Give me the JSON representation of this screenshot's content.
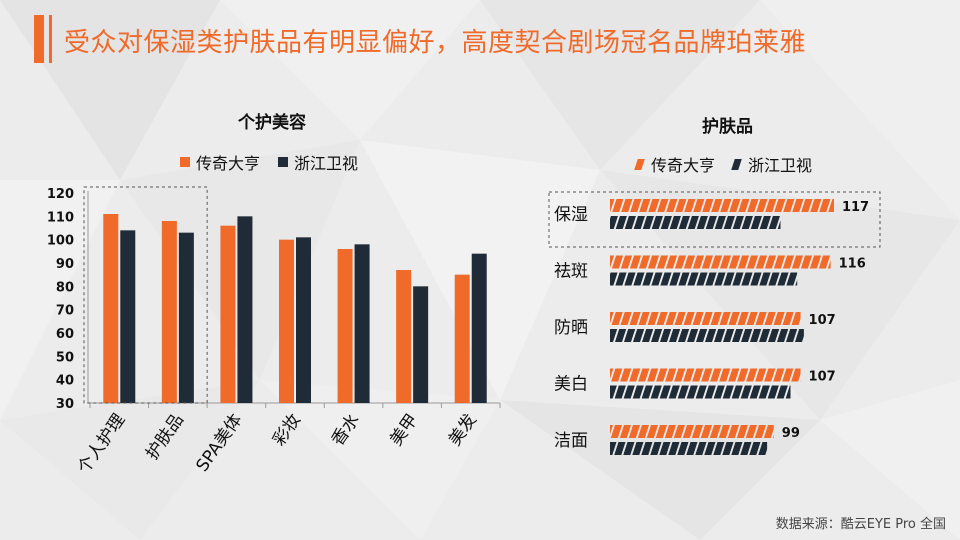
{
  "page": {
    "title": "受众对保湿类护肤品有明显偏好，高度契合剧场冠名品牌珀莱雅",
    "source": "数据来源：酷云EYE Pro 全国",
    "colors": {
      "accent": "#f06a2a",
      "dark": "#1f2b37"
    }
  },
  "chart_data": [
    {
      "type": "bar",
      "title": "个护美容",
      "categories": [
        "个人护理",
        "护肤品",
        "SPA美体",
        "彩妆",
        "香水",
        "美甲",
        "美发"
      ],
      "series": [
        {
          "name": "传奇大亨",
          "values": [
            111,
            108,
            106,
            100,
            96,
            87,
            85
          ]
        },
        {
          "name": "浙江卫视",
          "values": [
            104,
            103,
            110,
            101,
            98,
            80,
            94
          ]
        }
      ],
      "ylim": [
        30,
        120
      ],
      "yticks": [
        30,
        40,
        50,
        60,
        70,
        80,
        90,
        100,
        110,
        120
      ],
      "highlight_categories": [
        "个人护理",
        "护肤品"
      ],
      "xlabel": "",
      "ylabel": ""
    },
    {
      "type": "bar",
      "orientation": "horizontal",
      "title": "护肤品",
      "categories": [
        "保湿",
        "祛斑",
        "防晒",
        "美白",
        "洁面"
      ],
      "series": [
        {
          "name": "传奇大亨",
          "values": [
            117,
            116,
            107,
            107,
            99
          ],
          "labels": [
            "117",
            "116",
            "107",
            "107",
            "99"
          ]
        },
        {
          "name": "浙江卫视",
          "values": [
            101,
            106,
            108,
            104,
            97
          ]
        }
      ],
      "highlight_categories": [
        "保湿"
      ]
    }
  ]
}
